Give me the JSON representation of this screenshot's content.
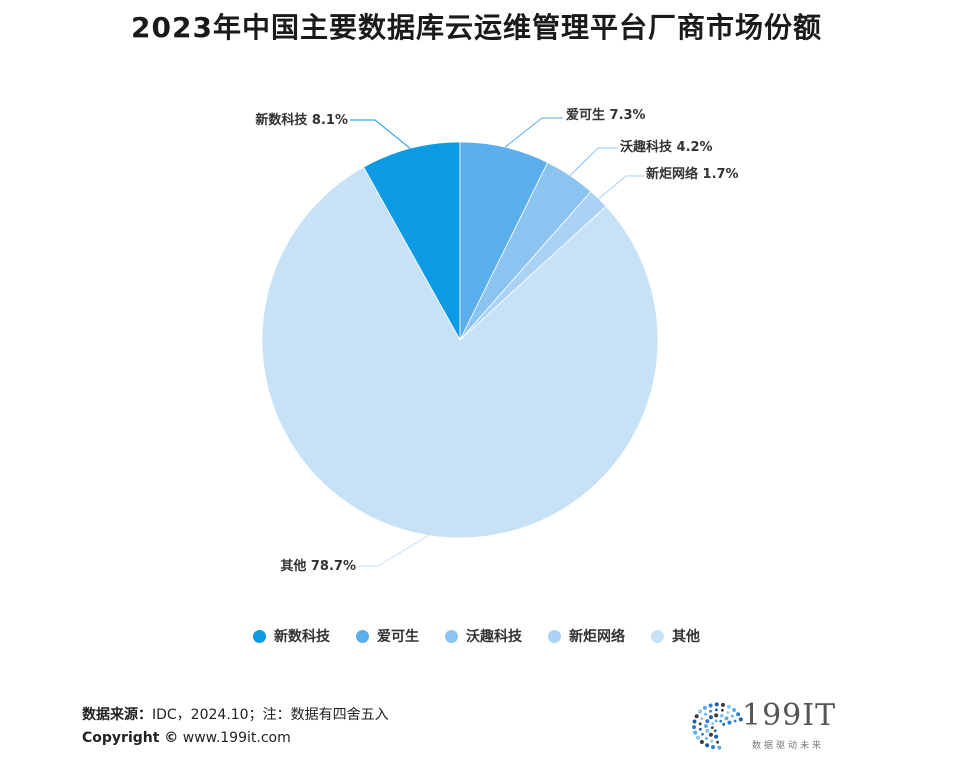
{
  "chart_data": {
    "type": "pie",
    "title": "2023年中国主要数据库云运维管理平台厂商市场份额",
    "slices": [
      {
        "label": "新数科技",
        "value": 8.1,
        "display": "新数科技 8.1%",
        "color": "#0c9ae4"
      },
      {
        "label": "爱可生",
        "value": 7.3,
        "display": "爱可生 7.3%",
        "color": "#5aaeec"
      },
      {
        "label": "沃趣科技",
        "value": 4.2,
        "display": "沃趣科技 4.2%",
        "color": "#8cc4f1"
      },
      {
        "label": "新炬网络",
        "value": 1.7,
        "display": "新炬网络 1.7%",
        "color": "#a9d2f4"
      },
      {
        "label": "其他",
        "value": 78.7,
        "display": "其他 78.7%",
        "color": "#c7e1f7"
      }
    ],
    "legend_position": "bottom"
  },
  "footer": {
    "source_label": "数据来源：",
    "source_text": "IDC，2024.10；注：数据有四舍五入",
    "copyright_label": "Copyright ©",
    "copyright_text": " www.199it.com"
  },
  "logo": {
    "text": "199IT",
    "subtitle": "数据驱动未来"
  }
}
